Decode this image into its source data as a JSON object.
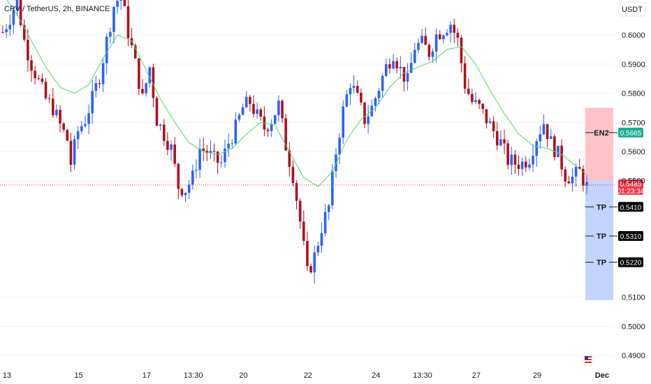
{
  "header": {
    "symbol_title": "CRV / TetherUS, 2h, BINANCE",
    "currency_button": "USDT"
  },
  "colors": {
    "up": "#2962ff",
    "down": "#b2101c",
    "ma": "#4cd964",
    "stop_zone": "#ffc2c7",
    "target_zone": "#c2d4ff",
    "current_price": "#f23645",
    "entry_badge": "#22ab94",
    "tp_badge": "#000000"
  },
  "chart_data": {
    "type": "candlestick",
    "title": "CRV / TetherUS, 2h, BINANCE",
    "ylim": [
      0.485,
      0.612
    ],
    "y_ticks": [
      "0.6000",
      "0.5900",
      "0.5800",
      "0.5700",
      "0.5600",
      "0.5500",
      "0.5100",
      "0.5000",
      "0.4900"
    ],
    "x_ticks": [
      "13",
      "15",
      "17",
      "13:30",
      "20",
      "22",
      "24",
      "13:30",
      "27",
      "29",
      "Dec"
    ],
    "close_path": [
      [
        0,
        0.601
      ],
      [
        2,
        0.606
      ],
      [
        4,
        0.612
      ],
      [
        6,
        0.598
      ],
      [
        8,
        0.59
      ],
      [
        10,
        0.584
      ],
      [
        12,
        0.578
      ],
      [
        14,
        0.575
      ],
      [
        16,
        0.569
      ],
      [
        18,
        0.564
      ],
      [
        19,
        0.556
      ],
      [
        21,
        0.567
      ],
      [
        23,
        0.571
      ],
      [
        25,
        0.578
      ],
      [
        27,
        0.586
      ],
      [
        29,
        0.598
      ],
      [
        31,
        0.61
      ],
      [
        33,
        0.614
      ],
      [
        35,
        0.601
      ],
      [
        37,
        0.59
      ],
      [
        39,
        0.578
      ],
      [
        41,
        0.589
      ],
      [
        43,
        0.571
      ],
      [
        45,
        0.566
      ],
      [
        47,
        0.561
      ],
      [
        49,
        0.548
      ],
      [
        51,
        0.547
      ],
      [
        53,
        0.551
      ],
      [
        55,
        0.561
      ],
      [
        57,
        0.56
      ],
      [
        59,
        0.557
      ],
      [
        61,
        0.556
      ],
      [
        63,
        0.563
      ],
      [
        65,
        0.568
      ],
      [
        67,
        0.575
      ],
      [
        69,
        0.577
      ],
      [
        71,
        0.572
      ],
      [
        73,
        0.568
      ],
      [
        75,
        0.571
      ],
      [
        77,
        0.576
      ],
      [
        79,
        0.562
      ],
      [
        81,
        0.552
      ],
      [
        83,
        0.536
      ],
      [
        85,
        0.518
      ],
      [
        87,
        0.524
      ],
      [
        89,
        0.534
      ],
      [
        91,
        0.541
      ],
      [
        93,
        0.56
      ],
      [
        95,
        0.574
      ],
      [
        97,
        0.584
      ],
      [
        99,
        0.578
      ],
      [
        101,
        0.571
      ],
      [
        103,
        0.575
      ],
      [
        105,
        0.582
      ],
      [
        107,
        0.589
      ],
      [
        109,
        0.594
      ],
      [
        111,
        0.588
      ],
      [
        113,
        0.584
      ],
      [
        115,
        0.596
      ],
      [
        117,
        0.597
      ],
      [
        119,
        0.594
      ],
      [
        121,
        0.6
      ],
      [
        123,
        0.602
      ],
      [
        125,
        0.604
      ],
      [
        127,
        0.598
      ],
      [
        129,
        0.583
      ],
      [
        131,
        0.577
      ],
      [
        133,
        0.575
      ],
      [
        135,
        0.571
      ],
      [
        137,
        0.567
      ],
      [
        139,
        0.563
      ],
      [
        141,
        0.557
      ],
      [
        143,
        0.556
      ],
      [
        145,
        0.556
      ],
      [
        147,
        0.558
      ],
      [
        149,
        0.565
      ],
      [
        151,
        0.57
      ],
      [
        153,
        0.563
      ],
      [
        155,
        0.559
      ],
      [
        157,
        0.552
      ],
      [
        159,
        0.551
      ],
      [
        161,
        0.553
      ],
      [
        163,
        0.548
      ]
    ],
    "ma_path": [
      [
        0,
        0.614
      ],
      [
        4,
        0.607
      ],
      [
        8,
        0.598
      ],
      [
        12,
        0.589
      ],
      [
        16,
        0.582
      ],
      [
        20,
        0.58
      ],
      [
        24,
        0.583
      ],
      [
        28,
        0.592
      ],
      [
        32,
        0.6
      ],
      [
        36,
        0.598
      ],
      [
        40,
        0.588
      ],
      [
        44,
        0.578
      ],
      [
        48,
        0.57
      ],
      [
        52,
        0.563
      ],
      [
        56,
        0.56
      ],
      [
        60,
        0.559
      ],
      [
        64,
        0.561
      ],
      [
        68,
        0.566
      ],
      [
        72,
        0.57
      ],
      [
        76,
        0.569
      ],
      [
        80,
        0.56
      ],
      [
        84,
        0.551
      ],
      [
        88,
        0.548
      ],
      [
        92,
        0.553
      ],
      [
        96,
        0.564
      ],
      [
        100,
        0.571
      ],
      [
        104,
        0.575
      ],
      [
        108,
        0.582
      ],
      [
        112,
        0.587
      ],
      [
        116,
        0.589
      ],
      [
        120,
        0.591
      ],
      [
        124,
        0.595
      ],
      [
        128,
        0.596
      ],
      [
        132,
        0.59
      ],
      [
        136,
        0.581
      ],
      [
        140,
        0.573
      ],
      [
        144,
        0.566
      ],
      [
        148,
        0.562
      ],
      [
        152,
        0.561
      ],
      [
        156,
        0.559
      ],
      [
        160,
        0.555
      ],
      [
        163,
        0.552
      ]
    ],
    "current_price": 0.5485,
    "countdown": "01:23:34",
    "position": {
      "stop_top": 0.575,
      "entry": 0.55,
      "target_bottom": 0.509
    },
    "levels": [
      {
        "label": "EN2",
        "value": 0.5665,
        "price_text": "0.5665",
        "kind": "entry"
      },
      {
        "label": "TP",
        "value": 0.541,
        "price_text": "0.5410",
        "kind": "tp"
      },
      {
        "label": "TP",
        "value": 0.531,
        "price_text": "0.5310",
        "kind": "tp"
      },
      {
        "label": "TP",
        "value": 0.522,
        "price_text": "0.5220",
        "kind": "tp"
      }
    ],
    "current_price_text": "0.5485",
    "current_price_partial_tick": "0.5500"
  }
}
